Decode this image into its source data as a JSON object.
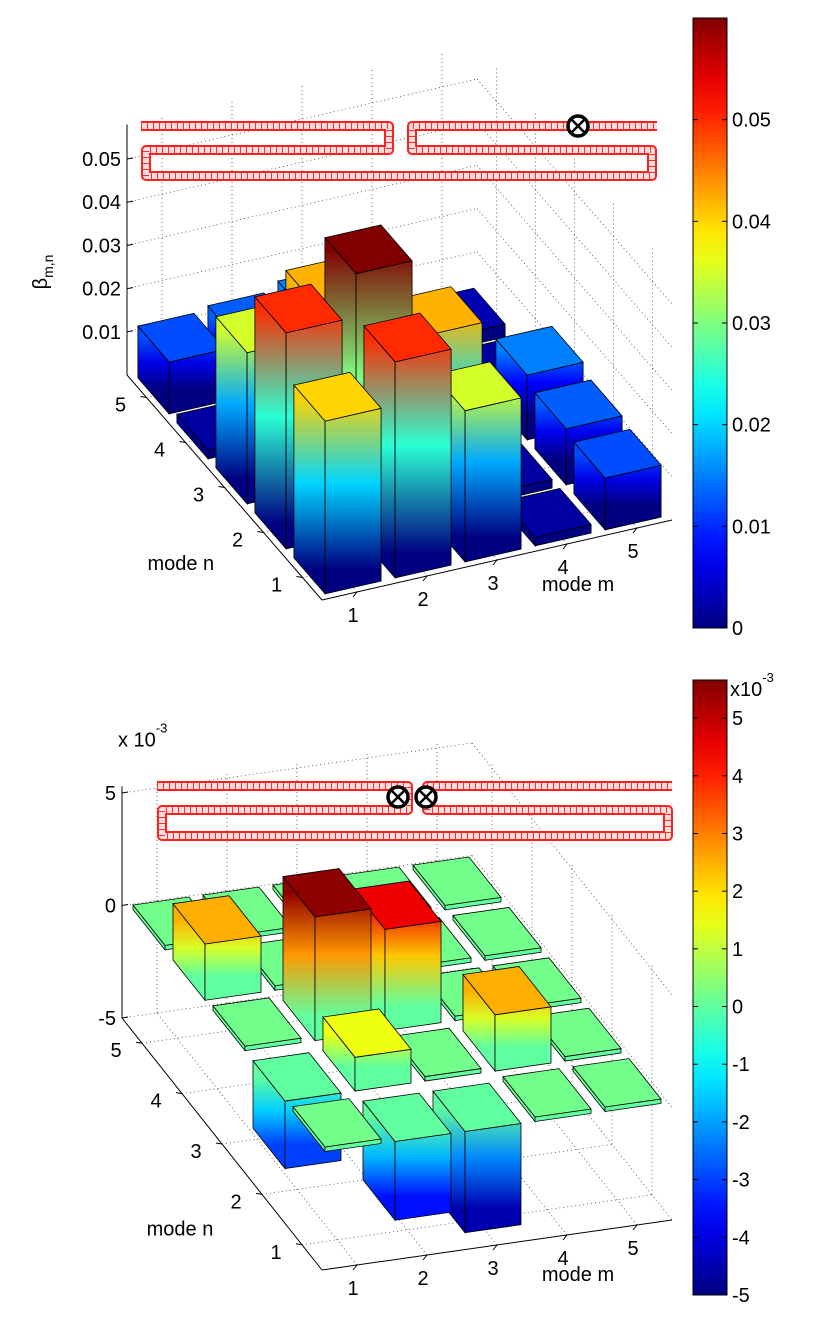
{
  "chart_data": [
    {
      "type": "bar3",
      "xlabel": "mode m",
      "ylabel": "mode n",
      "zlabel": "β",
      "zlabel_sub": "m,n",
      "x_ticks": [
        "1",
        "2",
        "3",
        "4",
        "5"
      ],
      "y_ticks": [
        "1",
        "2",
        "3",
        "4",
        "5"
      ],
      "z_ticks": [
        0.01,
        0.02,
        0.03,
        0.04,
        0.05
      ],
      "z_tick_labels": [
        "0.01",
        "0.02",
        "0.03",
        "0.04",
        "0.05"
      ],
      "zlim": [
        0,
        0.06
      ],
      "grid": true,
      "values_by_n": [
        [
          0.04,
          0.05,
          0.035,
          0.002,
          0.012
        ],
        [
          0.05,
          0.06,
          0.042,
          0.002,
          0.013
        ],
        [
          0.035,
          0.042,
          0.002,
          0.003,
          0.015
        ],
        [
          0.002,
          0.002,
          0.003,
          0.002,
          0.002
        ],
        [
          0.012,
          0.013,
          0.015,
          0.002,
          0.003
        ]
      ],
      "colorbar": {
        "range": [
          0,
          0.06
        ],
        "ticks": [
          0,
          0.01,
          0.02,
          0.03,
          0.04,
          0.05
        ],
        "tick_labels": [
          "0",
          "0.01",
          "0.02",
          "0.03",
          "0.04",
          "0.05"
        ]
      },
      "current_markers": 1
    },
    {
      "type": "bar3",
      "xlabel": "mode m",
      "ylabel": "mode n",
      "scale_label": "x 10",
      "scale_exp": "-3",
      "x_ticks": [
        "1",
        "2",
        "3",
        "4",
        "5"
      ],
      "y_ticks": [
        "1",
        "2",
        "3",
        "4",
        "5"
      ],
      "z_ticks": [
        -5,
        0,
        5
      ],
      "z_tick_labels": [
        "-5",
        "0",
        "5"
      ],
      "zlim": [
        -5,
        5.5
      ],
      "grid": true,
      "values_by_n": [
        [
          0.2,
          -3.5,
          -4.5,
          0.2,
          0.2
        ],
        [
          -3.0,
          1.5,
          0.2,
          2.5,
          0.2
        ],
        [
          0.2,
          5.5,
          4.5,
          0.2,
          0.2
        ],
        [
          2.5,
          0.2,
          0.2,
          0.2,
          0.2
        ],
        [
          0.2,
          0.2,
          0.2,
          0.2,
          0.2
        ]
      ],
      "colorbar": {
        "range": [
          -5,
          5.66
        ],
        "ticks": [
          -5,
          -4,
          -3,
          -2,
          -1,
          0,
          1,
          2,
          3,
          4,
          5
        ],
        "tick_labels": [
          "-5",
          "-4",
          "-3",
          "-2",
          "-1",
          "0",
          "1",
          "2",
          "3",
          "4",
          "5"
        ],
        "scale_label": "x10",
        "scale_exp": "-3"
      },
      "current_markers": 2
    }
  ]
}
